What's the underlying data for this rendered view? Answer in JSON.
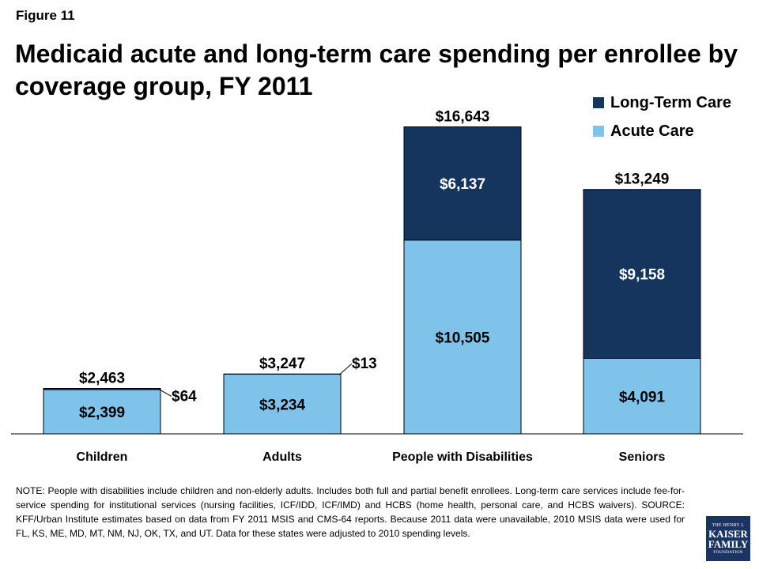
{
  "figure_label": "Figure 11",
  "colors": {
    "long_term": "#15355f",
    "acute": "#7fc2ea",
    "axis": "#000000"
  },
  "legend": [
    {
      "label": "Long-Term Care",
      "color": "#15355f"
    },
    {
      "label": "Acute Care",
      "color": "#7fc2ea"
    }
  ],
  "chart_data": {
    "type": "bar",
    "stacked": true,
    "title": "Medicaid acute and long-term care spending per enrollee by coverage group, FY 2011",
    "categories": [
      "Children",
      "Adults",
      "People with Disabilities",
      "Seniors"
    ],
    "series": [
      {
        "name": "Acute Care",
        "values": [
          2399,
          3234,
          10505,
          4091
        ],
        "labels": [
          "$2,399",
          "$3,234",
          "$10,505",
          "$4,091"
        ]
      },
      {
        "name": "Long-Term Care",
        "values": [
          64,
          13,
          6137,
          9158
        ],
        "labels": [
          "$64",
          "$13",
          "$6,137",
          "$9,158"
        ]
      }
    ],
    "totals": [
      2463,
      3247,
      16643,
      13249
    ],
    "total_labels": [
      "$2,463",
      "$3,247",
      "$16,643",
      "$13,249"
    ],
    "ylim": [
      0,
      17000
    ],
    "grid": false,
    "legend_position": "top-right"
  },
  "note": "NOTE:  People with disabilities include children and non-elderly adults.   Includes both full and partial benefit enrollees. Long-term care services include fee-for-service spending for institutional services (nursing facilities, ICF/IDD, ICF/IMD) and HCBS (home health, personal care, and HCBS waivers).  SOURCE: KFF/Urban Institute estimates based on data from FY 2011 MSIS and CMS-64 reports. Because 2011 data were unavailable, 2010 MSIS data were used for FL, KS, ME, MD, MT, NM, NJ, OK, TX, and UT. Data for these states were adjusted to 2010 spending levels.",
  "logo": {
    "line1": "THE HENRY J.",
    "line2a": "KAISER",
    "line2b": "FAMILY",
    "line3": "FOUNDATION"
  }
}
